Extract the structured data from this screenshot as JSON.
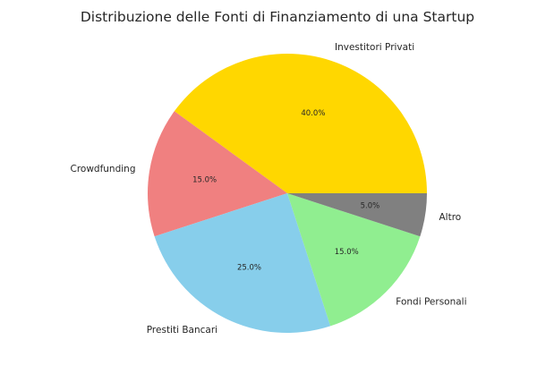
{
  "chart_data": {
    "type": "pie",
    "title": "Distribuzione delle Fonti di Finanziamento di una Startup",
    "start_angle_deg": 0,
    "direction": "counterclockwise",
    "slices": [
      {
        "label": "Investitori Privati",
        "value": 40.0,
        "pct_label": "40.0%",
        "color": "#FFD700"
      },
      {
        "label": "Crowdfunding",
        "value": 15.0,
        "pct_label": "15.0%",
        "color": "#F08080"
      },
      {
        "label": "Prestiti Bancari",
        "value": 25.0,
        "pct_label": "25.0%",
        "color": "#87CEEB"
      },
      {
        "label": "Fondi Personali",
        "value": 15.0,
        "pct_label": "15.0%",
        "color": "#90EE90"
      },
      {
        "label": "Altro",
        "value": 5.0,
        "pct_label": "5.0%",
        "color": "#808080"
      }
    ]
  }
}
